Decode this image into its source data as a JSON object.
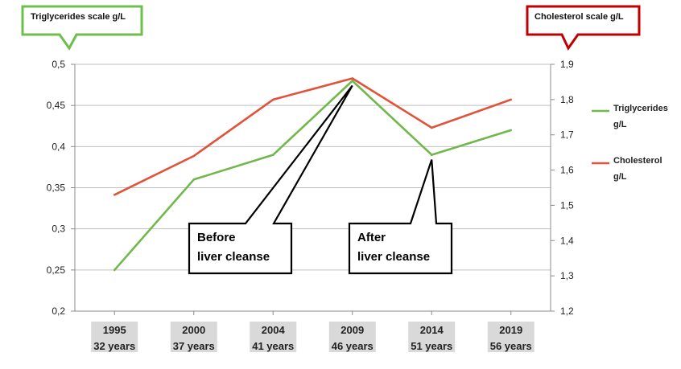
{
  "chart_data": {
    "type": "line",
    "categories": [
      {
        "year": "1995",
        "age": "32 years"
      },
      {
        "year": "2000",
        "age": "37 years"
      },
      {
        "year": "2004",
        "age": "41 years"
      },
      {
        "year": "2009",
        "age": "46 years"
      },
      {
        "year": "2014",
        "age": "51 years"
      },
      {
        "year": "2019",
        "age": "56 years"
      }
    ],
    "left_axis": {
      "title": "Triglycerides scale  g/L",
      "ylim": [
        0.2,
        0.5
      ],
      "ticks": [
        "0,2",
        "0,25",
        "0,3",
        "0,35",
        "0,4",
        "0,45",
        "0,5"
      ],
      "tick_values": [
        0.2,
        0.25,
        0.3,
        0.35,
        0.4,
        0.45,
        0.5
      ],
      "box_color": "#6cbf4a"
    },
    "right_axis": {
      "title": "Cholesterol scale  g/L",
      "ylim": [
        1.2,
        1.9
      ],
      "ticks": [
        "1,2",
        "1,3",
        "1,4",
        "1,5",
        "1,6",
        "1,7",
        "1,8",
        "1,9"
      ],
      "tick_values": [
        1.2,
        1.3,
        1.4,
        1.5,
        1.6,
        1.7,
        1.8,
        1.9
      ],
      "box_color": "#c00000"
    },
    "series": [
      {
        "name": "Triglycerides",
        "unit": "g/L",
        "axis": "left",
        "color": "#70b84c",
        "values": [
          0.25,
          0.36,
          0.39,
          0.48,
          0.39,
          0.42
        ]
      },
      {
        "name": "Cholesterol",
        "unit": "g/L",
        "axis": "right",
        "color": "#e0533a",
        "values": [
          1.53,
          1.64,
          1.8,
          1.86,
          1.72,
          1.8
        ]
      }
    ],
    "grid": true,
    "legend": "right",
    "annotations": [
      {
        "lines": [
          "Before",
          "liver cleanse"
        ],
        "points_to": "2009"
      },
      {
        "lines": [
          "After",
          "liver cleanse"
        ],
        "points_to": "2014"
      }
    ]
  }
}
